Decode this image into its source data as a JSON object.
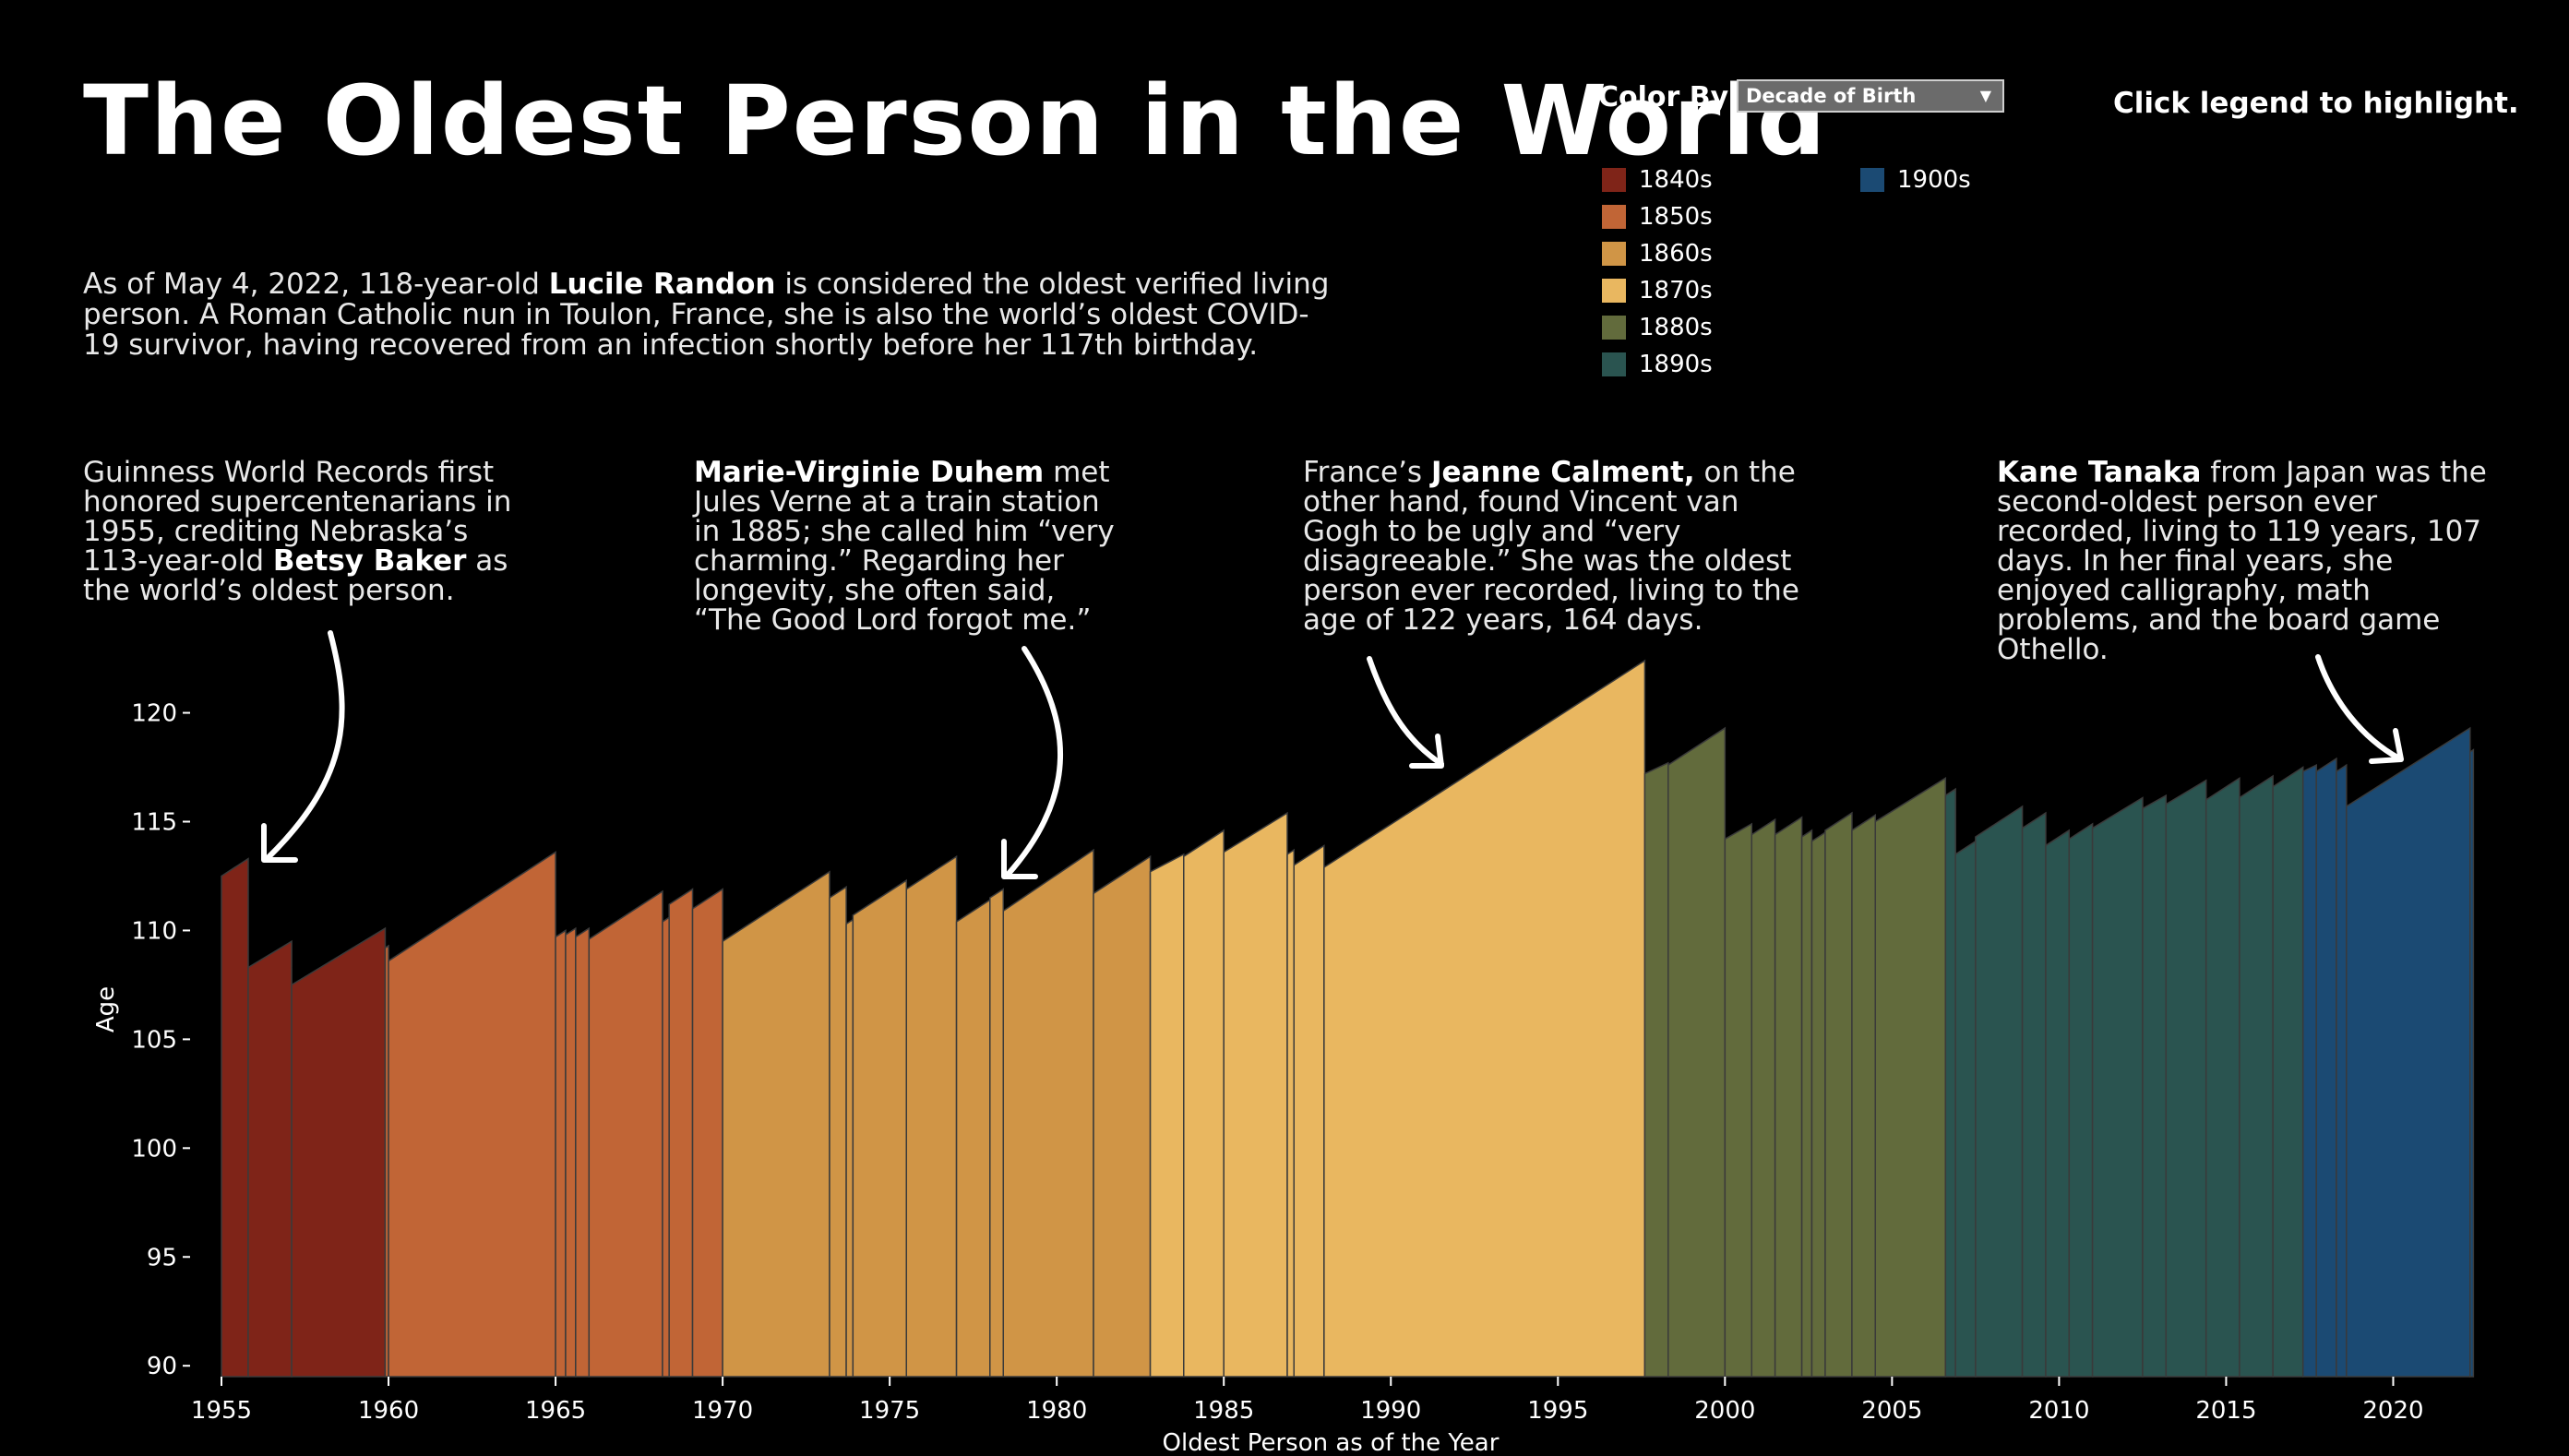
{
  "title": "The Oldest Person in the World",
  "intro": {
    "pre": "As of May 4, 2022, 118-year-old ",
    "bold": "Lucile Randon",
    "post": " is considered the oldest verified living person. A Roman Catholic nun in Toulon, France, she  is also the world’s oldest COVID-19 survivor, having recovered from an infection shortly before her 117th birthday."
  },
  "controls": {
    "color_by_label": "Color By:",
    "color_by_value": "Decade of Birth",
    "hint": "Click legend to highlight."
  },
  "annotations": [
    {
      "pre": "Guinness World Records first honored supercentenarians in 1955, crediting Nebraska’s 113-year-old ",
      "bold": "Betsy Baker",
      "post": " as the world’s oldest person."
    },
    {
      "pre": "",
      "bold": "Marie-Virginie Duhem",
      "post": " met Jules Verne at a train station in 1885; she called him “very charming.” Regarding her longevity, she often said, “The Good Lord forgot me.”"
    },
    {
      "pre": "France’s ",
      "bold": "Jeanne Calment,",
      "post": " on  the other hand, found Vincent van Gogh to be ugly and “very disagreeable.” She was the oldest person ever recorded, living to the age of 122 years, 164 days."
    },
    {
      "pre": "",
      "bold": "Kane Tanaka",
      "post": " from Japan was the second-oldest person ever recorded, living to 119 years, 107 days. In her final years, she enjoyed calligraphy, math problems, and the board game Othello."
    }
  ],
  "legend": [
    {
      "label": "1840s",
      "color": "#7f2418"
    },
    {
      "label": "1850s",
      "color": "#c16536"
    },
    {
      "label": "1860s",
      "color": "#d09546"
    },
    {
      "label": "1870s",
      "color": "#e9b760"
    },
    {
      "label": "1880s",
      "color": "#626b3c"
    },
    {
      "label": "1890s",
      "color": "#2a5450"
    },
    {
      "label": "1900s",
      "color": "#1b4a73"
    }
  ],
  "chart_data": {
    "type": "area",
    "title": "",
    "xlabel": "Oldest Person as of the Year",
    "ylabel": "Age",
    "xlim": [
      1955,
      2022.5
    ],
    "ylim": [
      89.5,
      123.5
    ],
    "xticks": [
      1955,
      1960,
      1965,
      1970,
      1975,
      1980,
      1985,
      1990,
      1995,
      2000,
      2005,
      2010,
      2015,
      2020
    ],
    "yticks": [
      90,
      95,
      100,
      105,
      110,
      115,
      120
    ],
    "segments": [
      {
        "decade": "1840s",
        "x0": 1955.0,
        "x1": 1955.8,
        "y0": 112.5,
        "y1": 113.3
      },
      {
        "decade": "1840s",
        "x0": 1955.8,
        "x1": 1957.1,
        "y0": 108.3,
        "y1": 109.5
      },
      {
        "decade": "1840s",
        "x0": 1957.1,
        "x1": 1959.9,
        "y0": 107.5,
        "y1": 110.1
      },
      {
        "decade": "1850s",
        "x0": 1959.9,
        "x1": 1960.0,
        "y0": 109.2,
        "y1": 109.3
      },
      {
        "decade": "1850s",
        "x0": 1960.0,
        "x1": 1965.0,
        "y0": 108.6,
        "y1": 113.6
      },
      {
        "decade": "1850s",
        "x0": 1965.0,
        "x1": 1965.3,
        "y0": 109.7,
        "y1": 110.0
      },
      {
        "decade": "1850s",
        "x0": 1965.3,
        "x1": 1965.6,
        "y0": 109.8,
        "y1": 110.1
      },
      {
        "decade": "1850s",
        "x0": 1965.6,
        "x1": 1966.0,
        "y0": 109.7,
        "y1": 110.1
      },
      {
        "decade": "1850s",
        "x0": 1966.0,
        "x1": 1968.2,
        "y0": 109.6,
        "y1": 111.8
      },
      {
        "decade": "1850s",
        "x0": 1968.2,
        "x1": 1968.4,
        "y0": 110.4,
        "y1": 110.6
      },
      {
        "decade": "1850s",
        "x0": 1968.4,
        "x1": 1969.1,
        "y0": 111.2,
        "y1": 111.9
      },
      {
        "decade": "1850s",
        "x0": 1969.1,
        "x1": 1970.0,
        "y0": 111.0,
        "y1": 111.9
      },
      {
        "decade": "1860s",
        "x0": 1970.0,
        "x1": 1973.2,
        "y0": 109.5,
        "y1": 112.7
      },
      {
        "decade": "1860s",
        "x0": 1973.2,
        "x1": 1973.7,
        "y0": 111.5,
        "y1": 112.0
      },
      {
        "decade": "1860s",
        "x0": 1973.7,
        "x1": 1973.9,
        "y0": 110.3,
        "y1": 110.5
      },
      {
        "decade": "1860s",
        "x0": 1973.9,
        "x1": 1975.5,
        "y0": 110.7,
        "y1": 112.3
      },
      {
        "decade": "1860s",
        "x0": 1975.5,
        "x1": 1977.0,
        "y0": 111.9,
        "y1": 113.4
      },
      {
        "decade": "1860s",
        "x0": 1977.0,
        "x1": 1978.0,
        "y0": 110.4,
        "y1": 111.4
      },
      {
        "decade": "1860s",
        "x0": 1978.0,
        "x1": 1978.4,
        "y0": 111.5,
        "y1": 111.9
      },
      {
        "decade": "1860s",
        "x0": 1978.4,
        "x1": 1981.1,
        "y0": 110.9,
        "y1": 113.7
      },
      {
        "decade": "1860s",
        "x0": 1981.1,
        "x1": 1982.8,
        "y0": 111.7,
        "y1": 113.4
      },
      {
        "decade": "1870s",
        "x0": 1982.8,
        "x1": 1983.8,
        "y0": 112.7,
        "y1": 113.5
      },
      {
        "decade": "1870s",
        "x0": 1983.8,
        "x1": 1985.0,
        "y0": 113.4,
        "y1": 114.6
      },
      {
        "decade": "1870s",
        "x0": 1985.0,
        "x1": 1986.9,
        "y0": 113.6,
        "y1": 115.4
      },
      {
        "decade": "1870s",
        "x0": 1986.9,
        "x1": 1987.1,
        "y0": 113.5,
        "y1": 113.7
      },
      {
        "decade": "1870s",
        "x0": 1987.1,
        "x1": 1988.0,
        "y0": 113.0,
        "y1": 113.9
      },
      {
        "decade": "1870s",
        "x0": 1988.0,
        "x1": 1997.6,
        "y0": 112.9,
        "y1": 122.4
      },
      {
        "decade": "1880s",
        "x0": 1997.6,
        "x1": 1998.3,
        "y0": 117.2,
        "y1": 117.7
      },
      {
        "decade": "1880s",
        "x0": 1998.3,
        "x1": 2000.0,
        "y0": 117.6,
        "y1": 119.3
      },
      {
        "decade": "1880s",
        "x0": 2000.0,
        "x1": 2000.8,
        "y0": 114.2,
        "y1": 114.9
      },
      {
        "decade": "1880s",
        "x0": 2000.8,
        "x1": 2001.5,
        "y0": 114.4,
        "y1": 115.1
      },
      {
        "decade": "1880s",
        "x0": 2001.5,
        "x1": 2002.3,
        "y0": 114.4,
        "y1": 115.2
      },
      {
        "decade": "1880s",
        "x0": 2002.3,
        "x1": 2002.6,
        "y0": 114.3,
        "y1": 114.6
      },
      {
        "decade": "1880s",
        "x0": 2002.6,
        "x1": 2003.0,
        "y0": 114.1,
        "y1": 114.5
      },
      {
        "decade": "1880s",
        "x0": 2003.0,
        "x1": 2003.8,
        "y0": 114.6,
        "y1": 115.4
      },
      {
        "decade": "1880s",
        "x0": 2003.8,
        "x1": 2004.5,
        "y0": 114.6,
        "y1": 115.3
      },
      {
        "decade": "1880s",
        "x0": 2004.5,
        "x1": 2006.6,
        "y0": 115.0,
        "y1": 117.0
      },
      {
        "decade": "1890s",
        "x0": 2006.6,
        "x1": 2006.9,
        "y0": 116.2,
        "y1": 116.5
      },
      {
        "decade": "1890s",
        "x0": 2006.9,
        "x1": 2007.5,
        "y0": 113.5,
        "y1": 114.1
      },
      {
        "decade": "1890s",
        "x0": 2007.5,
        "x1": 2008.9,
        "y0": 114.3,
        "y1": 115.7
      },
      {
        "decade": "1890s",
        "x0": 2008.9,
        "x1": 2009.6,
        "y0": 114.7,
        "y1": 115.4
      },
      {
        "decade": "1890s",
        "x0": 2009.6,
        "x1": 2010.3,
        "y0": 113.9,
        "y1": 114.6
      },
      {
        "decade": "1890s",
        "x0": 2010.3,
        "x1": 2011.0,
        "y0": 114.2,
        "y1": 114.9
      },
      {
        "decade": "1890s",
        "x0": 2011.0,
        "x1": 2012.5,
        "y0": 114.7,
        "y1": 116.1
      },
      {
        "decade": "1890s",
        "x0": 2012.5,
        "x1": 2013.2,
        "y0": 115.6,
        "y1": 116.2
      },
      {
        "decade": "1890s",
        "x0": 2013.2,
        "x1": 2014.4,
        "y0": 115.8,
        "y1": 116.9
      },
      {
        "decade": "1890s",
        "x0": 2014.4,
        "x1": 2015.4,
        "y0": 116.0,
        "y1": 117.0
      },
      {
        "decade": "1890s",
        "x0": 2015.4,
        "x1": 2016.4,
        "y0": 116.1,
        "y1": 117.1
      },
      {
        "decade": "1890s",
        "x0": 2016.4,
        "x1": 2017.3,
        "y0": 116.6,
        "y1": 117.5
      },
      {
        "decade": "1900s",
        "x0": 2017.3,
        "x1": 2017.7,
        "y0": 117.3,
        "y1": 117.6
      },
      {
        "decade": "1900s",
        "x0": 2017.7,
        "x1": 2018.3,
        "y0": 117.3,
        "y1": 117.9
      },
      {
        "decade": "1900s",
        "x0": 2018.3,
        "x1": 2018.6,
        "y0": 117.3,
        "y1": 117.6
      },
      {
        "decade": "1900s",
        "x0": 2018.6,
        "x1": 2022.3,
        "y0": 115.7,
        "y1": 119.3
      },
      {
        "decade": "1900s",
        "x0": 2022.3,
        "x1": 2022.4,
        "y0": 118.2,
        "y1": 118.3
      }
    ]
  }
}
